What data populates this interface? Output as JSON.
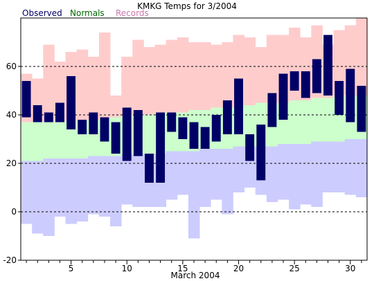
{
  "chart_data": {
    "type": "bar",
    "title": "KMKG Temps for 3/2004",
    "xlabel": "March 2004",
    "ylabel": "",
    "ylim": [
      -20,
      80
    ],
    "xlim": [
      0.5,
      31.5
    ],
    "yticks": [
      -20,
      0,
      20,
      40,
      60
    ],
    "xticks": [
      5,
      10,
      15,
      20,
      25,
      30
    ],
    "grid": "dashed horizontal",
    "legend_position": "top-left",
    "legend": [
      {
        "name": "Observed",
        "color": "#000066"
      },
      {
        "name": "Normals",
        "color": "#006600"
      },
      {
        "name": "Records",
        "color": "#cc77aa"
      }
    ],
    "colors": {
      "observed": "#000066",
      "normals_fill": "#ccffcc",
      "records_high_fill": "#ffcccc",
      "records_low_fill": "#ccccff"
    },
    "days": [
      1,
      2,
      3,
      4,
      5,
      6,
      7,
      8,
      9,
      10,
      11,
      12,
      13,
      14,
      15,
      16,
      17,
      18,
      19,
      20,
      21,
      22,
      23,
      24,
      25,
      26,
      27,
      28,
      29,
      30,
      31
    ],
    "record_high": [
      57,
      55,
      69,
      62,
      66,
      67,
      64,
      74,
      48,
      64,
      71,
      68,
      69,
      71,
      72,
      70,
      70,
      69,
      70,
      73,
      72,
      68,
      73,
      73,
      76,
      72,
      77,
      69,
      75,
      77,
      80
    ],
    "record_low": [
      -5,
      -9,
      -10,
      -2,
      -5,
      -4,
      -1,
      -2,
      -6,
      3,
      2,
      2,
      2,
      5,
      7,
      -11,
      2,
      5,
      -1,
      8,
      10,
      7,
      4,
      5,
      1,
      3,
      2,
      8,
      8,
      7,
      6
    ],
    "normal_high": [
      37,
      37,
      37,
      37,
      38,
      38,
      38,
      39,
      39,
      40,
      40,
      40,
      41,
      41,
      41,
      42,
      42,
      43,
      43,
      43,
      44,
      45,
      45,
      45,
      46,
      46,
      47,
      47,
      48,
      48,
      48
    ],
    "normal_low": [
      21,
      21,
      22,
      22,
      22,
      22,
      23,
      23,
      23,
      24,
      24,
      24,
      24,
      25,
      25,
      25,
      26,
      26,
      26,
      27,
      27,
      27,
      27,
      28,
      28,
      28,
      29,
      29,
      29,
      30,
      30
    ],
    "observed_high": [
      54,
      44,
      41,
      45,
      56,
      38,
      41,
      39,
      37,
      43,
      42,
      24,
      41,
      41,
      39,
      37,
      35,
      40,
      46,
      55,
      32,
      36,
      49,
      57,
      58,
      58,
      63,
      73,
      54,
      59,
      52
    ],
    "observed_low": [
      39,
      37,
      37,
      37,
      34,
      32,
      32,
      29,
      24,
      21,
      23,
      12,
      12,
      33,
      30,
      26,
      26,
      29,
      32,
      32,
      21,
      13,
      35,
      38,
      50,
      47,
      49,
      48,
      40,
      37,
      33
    ]
  }
}
